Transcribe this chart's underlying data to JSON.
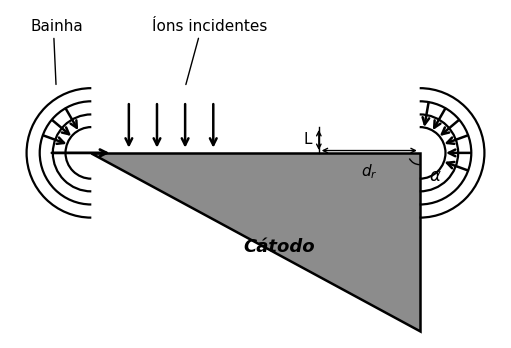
{
  "bg_color": "#ffffff",
  "triangle_color": "#8c8c8c",
  "label_bainha": "Bainha",
  "label_ions": "Íons incidentes",
  "label_catodo": "Cátodo",
  "label_L": "L",
  "label_dr": "d_r",
  "label_alpha": "α",
  "fig_width": 5.11,
  "fig_height": 3.48,
  "dpi": 100
}
